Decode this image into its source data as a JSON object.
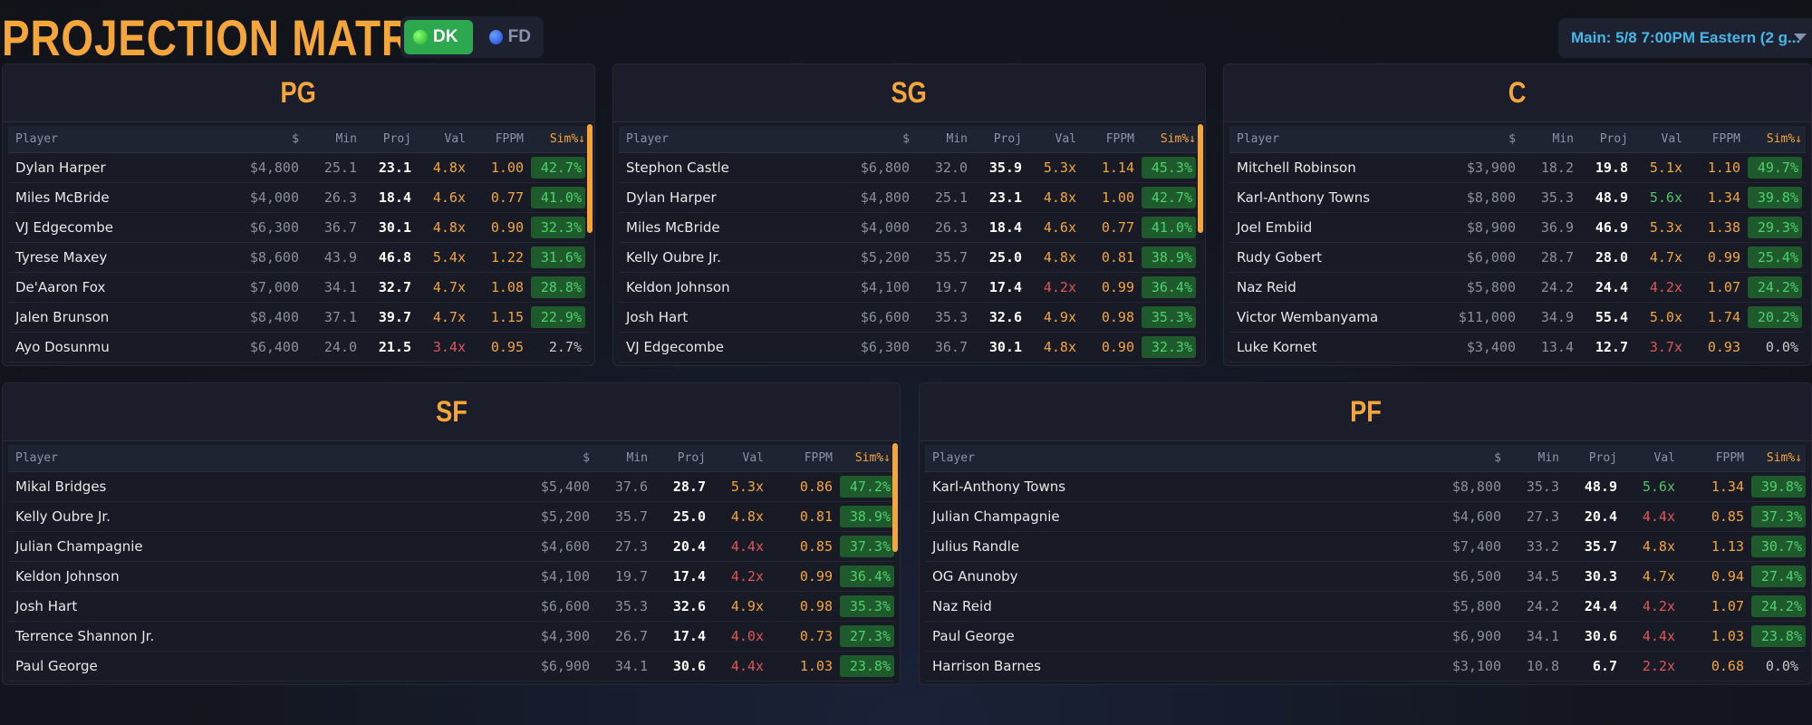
{
  "app": {
    "title": "PROJECTION MATRIX",
    "sites": [
      {
        "label": "DK",
        "active": true,
        "icon": "green-dot-icon"
      },
      {
        "label": "FD",
        "active": false,
        "icon": "blue-dot-icon"
      }
    ],
    "slate": "Main: 5/8 7:00PM Eastern (2 g..."
  },
  "columns": [
    "Player",
    "$",
    "Min",
    "Proj",
    "Val",
    "FPPM",
    "Sim%↓"
  ],
  "colors": {
    "accent": "#f4a63b",
    "val_high": "#4fc46a",
    "val_low": "#e05656",
    "sim_bg": "#1e5a2c",
    "sim_text": "#4fd06e",
    "link": "#46b6e8"
  },
  "panels": {
    "pg": {
      "title": "PG",
      "rows": [
        {
          "player": "Dylan Harper",
          "salary": "$4,800",
          "min": "25.1",
          "proj": "23.1",
          "val": "4.8x",
          "val_level": "mid",
          "fppm": "1.00",
          "sim": "42.7%",
          "sim_hl": true
        },
        {
          "player": "Miles McBride",
          "salary": "$4,000",
          "min": "26.3",
          "proj": "18.4",
          "val": "4.6x",
          "val_level": "mid",
          "fppm": "0.77",
          "sim": "41.0%",
          "sim_hl": true
        },
        {
          "player": "VJ Edgecombe",
          "salary": "$6,300",
          "min": "36.7",
          "proj": "30.1",
          "val": "4.8x",
          "val_level": "mid",
          "fppm": "0.90",
          "sim": "32.3%",
          "sim_hl": true
        },
        {
          "player": "Tyrese Maxey",
          "salary": "$8,600",
          "min": "43.9",
          "proj": "46.8",
          "val": "5.4x",
          "val_level": "mid",
          "fppm": "1.22",
          "sim": "31.6%",
          "sim_hl": true
        },
        {
          "player": "De'Aaron Fox",
          "salary": "$7,000",
          "min": "34.1",
          "proj": "32.7",
          "val": "4.7x",
          "val_level": "mid",
          "fppm": "1.08",
          "sim": "28.8%",
          "sim_hl": true
        },
        {
          "player": "Jalen Brunson",
          "salary": "$8,400",
          "min": "37.1",
          "proj": "39.7",
          "val": "4.7x",
          "val_level": "mid",
          "fppm": "1.15",
          "sim": "22.9%",
          "sim_hl": true
        },
        {
          "player": "Ayo Dosunmu",
          "salary": "$6,400",
          "min": "24.0",
          "proj": "21.5",
          "val": "3.4x",
          "val_level": "lo",
          "fppm": "0.95",
          "sim": "2.7%",
          "sim_hl": false
        }
      ]
    },
    "sg": {
      "title": "SG",
      "rows": [
        {
          "player": "Stephon Castle",
          "salary": "$6,800",
          "min": "32.0",
          "proj": "35.9",
          "val": "5.3x",
          "val_level": "mid",
          "fppm": "1.14",
          "sim": "45.3%",
          "sim_hl": true
        },
        {
          "player": "Dylan Harper",
          "salary": "$4,800",
          "min": "25.1",
          "proj": "23.1",
          "val": "4.8x",
          "val_level": "mid",
          "fppm": "1.00",
          "sim": "42.7%",
          "sim_hl": true
        },
        {
          "player": "Miles McBride",
          "salary": "$4,000",
          "min": "26.3",
          "proj": "18.4",
          "val": "4.6x",
          "val_level": "mid",
          "fppm": "0.77",
          "sim": "41.0%",
          "sim_hl": true
        },
        {
          "player": "Kelly Oubre Jr.",
          "salary": "$5,200",
          "min": "35.7",
          "proj": "25.0",
          "val": "4.8x",
          "val_level": "mid",
          "fppm": "0.81",
          "sim": "38.9%",
          "sim_hl": true
        },
        {
          "player": "Keldon Johnson",
          "salary": "$4,100",
          "min": "19.7",
          "proj": "17.4",
          "val": "4.2x",
          "val_level": "lo",
          "fppm": "0.99",
          "sim": "36.4%",
          "sim_hl": true
        },
        {
          "player": "Josh Hart",
          "salary": "$6,600",
          "min": "35.3",
          "proj": "32.6",
          "val": "4.9x",
          "val_level": "mid",
          "fppm": "0.98",
          "sim": "35.3%",
          "sim_hl": true
        },
        {
          "player": "VJ Edgecombe",
          "salary": "$6,300",
          "min": "36.7",
          "proj": "30.1",
          "val": "4.8x",
          "val_level": "mid",
          "fppm": "0.90",
          "sim": "32.3%",
          "sim_hl": true
        }
      ]
    },
    "c": {
      "title": "C",
      "rows": [
        {
          "player": "Mitchell Robinson",
          "salary": "$3,900",
          "min": "18.2",
          "proj": "19.8",
          "val": "5.1x",
          "val_level": "mid",
          "fppm": "1.10",
          "sim": "49.7%",
          "sim_hl": true
        },
        {
          "player": "Karl-Anthony Towns",
          "salary": "$8,800",
          "min": "35.3",
          "proj": "48.9",
          "val": "5.6x",
          "val_level": "hi",
          "fppm": "1.34",
          "sim": "39.8%",
          "sim_hl": true
        },
        {
          "player": "Joel Embiid",
          "salary": "$8,900",
          "min": "36.9",
          "proj": "46.9",
          "val": "5.3x",
          "val_level": "mid",
          "fppm": "1.38",
          "sim": "29.3%",
          "sim_hl": true
        },
        {
          "player": "Rudy Gobert",
          "salary": "$6,000",
          "min": "28.7",
          "proj": "28.0",
          "val": "4.7x",
          "val_level": "mid",
          "fppm": "0.99",
          "sim": "25.4%",
          "sim_hl": true
        },
        {
          "player": "Naz Reid",
          "salary": "$5,800",
          "min": "24.2",
          "proj": "24.4",
          "val": "4.2x",
          "val_level": "lo",
          "fppm": "1.07",
          "sim": "24.2%",
          "sim_hl": true
        },
        {
          "player": "Victor Wembanyama",
          "salary": "$11,000",
          "min": "34.9",
          "proj": "55.4",
          "val": "5.0x",
          "val_level": "mid",
          "fppm": "1.74",
          "sim": "20.2%",
          "sim_hl": true
        },
        {
          "player": "Luke Kornet",
          "salary": "$3,400",
          "min": "13.4",
          "proj": "12.7",
          "val": "3.7x",
          "val_level": "lo",
          "fppm": "0.93",
          "sim": "0.0%",
          "sim_hl": false
        }
      ]
    },
    "sf": {
      "title": "SF",
      "rows": [
        {
          "player": "Mikal Bridges",
          "salary": "$5,400",
          "min": "37.6",
          "proj": "28.7",
          "val": "5.3x",
          "val_level": "mid",
          "fppm": "0.86",
          "sim": "47.2%",
          "sim_hl": true
        },
        {
          "player": "Kelly Oubre Jr.",
          "salary": "$5,200",
          "min": "35.7",
          "proj": "25.0",
          "val": "4.8x",
          "val_level": "mid",
          "fppm": "0.81",
          "sim": "38.9%",
          "sim_hl": true
        },
        {
          "player": "Julian Champagnie",
          "salary": "$4,600",
          "min": "27.3",
          "proj": "20.4",
          "val": "4.4x",
          "val_level": "lo",
          "fppm": "0.85",
          "sim": "37.3%",
          "sim_hl": true
        },
        {
          "player": "Keldon Johnson",
          "salary": "$4,100",
          "min": "19.7",
          "proj": "17.4",
          "val": "4.2x",
          "val_level": "lo",
          "fppm": "0.99",
          "sim": "36.4%",
          "sim_hl": true
        },
        {
          "player": "Josh Hart",
          "salary": "$6,600",
          "min": "35.3",
          "proj": "32.6",
          "val": "4.9x",
          "val_level": "mid",
          "fppm": "0.98",
          "sim": "35.3%",
          "sim_hl": true
        },
        {
          "player": "Terrence Shannon Jr.",
          "salary": "$4,300",
          "min": "26.7",
          "proj": "17.4",
          "val": "4.0x",
          "val_level": "lo",
          "fppm": "0.73",
          "sim": "27.3%",
          "sim_hl": true
        },
        {
          "player": "Paul George",
          "salary": "$6,900",
          "min": "34.1",
          "proj": "30.6",
          "val": "4.4x",
          "val_level": "lo",
          "fppm": "1.03",
          "sim": "23.8%",
          "sim_hl": true
        }
      ]
    },
    "pf": {
      "title": "PF",
      "rows": [
        {
          "player": "Karl-Anthony Towns",
          "salary": "$8,800",
          "min": "35.3",
          "proj": "48.9",
          "val": "5.6x",
          "val_level": "hi",
          "fppm": "1.34",
          "sim": "39.8%",
          "sim_hl": true
        },
        {
          "player": "Julian Champagnie",
          "salary": "$4,600",
          "min": "27.3",
          "proj": "20.4",
          "val": "4.4x",
          "val_level": "lo",
          "fppm": "0.85",
          "sim": "37.3%",
          "sim_hl": true
        },
        {
          "player": "Julius Randle",
          "salary": "$7,400",
          "min": "33.2",
          "proj": "35.7",
          "val": "4.8x",
          "val_level": "mid",
          "fppm": "1.13",
          "sim": "30.7%",
          "sim_hl": true
        },
        {
          "player": "OG Anunoby",
          "salary": "$6,500",
          "min": "34.5",
          "proj": "30.3",
          "val": "4.7x",
          "val_level": "mid",
          "fppm": "0.94",
          "sim": "27.4%",
          "sim_hl": true
        },
        {
          "player": "Naz Reid",
          "salary": "$5,800",
          "min": "24.2",
          "proj": "24.4",
          "val": "4.2x",
          "val_level": "lo",
          "fppm": "1.07",
          "sim": "24.2%",
          "sim_hl": true
        },
        {
          "player": "Paul George",
          "salary": "$6,900",
          "min": "34.1",
          "proj": "30.6",
          "val": "4.4x",
          "val_level": "lo",
          "fppm": "1.03",
          "sim": "23.8%",
          "sim_hl": true
        },
        {
          "player": "Harrison Barnes",
          "salary": "$3,100",
          "min": "10.8",
          "proj": "6.7",
          "val": "2.2x",
          "val_level": "lo",
          "fppm": "0.68",
          "sim": "0.0%",
          "sim_hl": false
        }
      ]
    }
  }
}
